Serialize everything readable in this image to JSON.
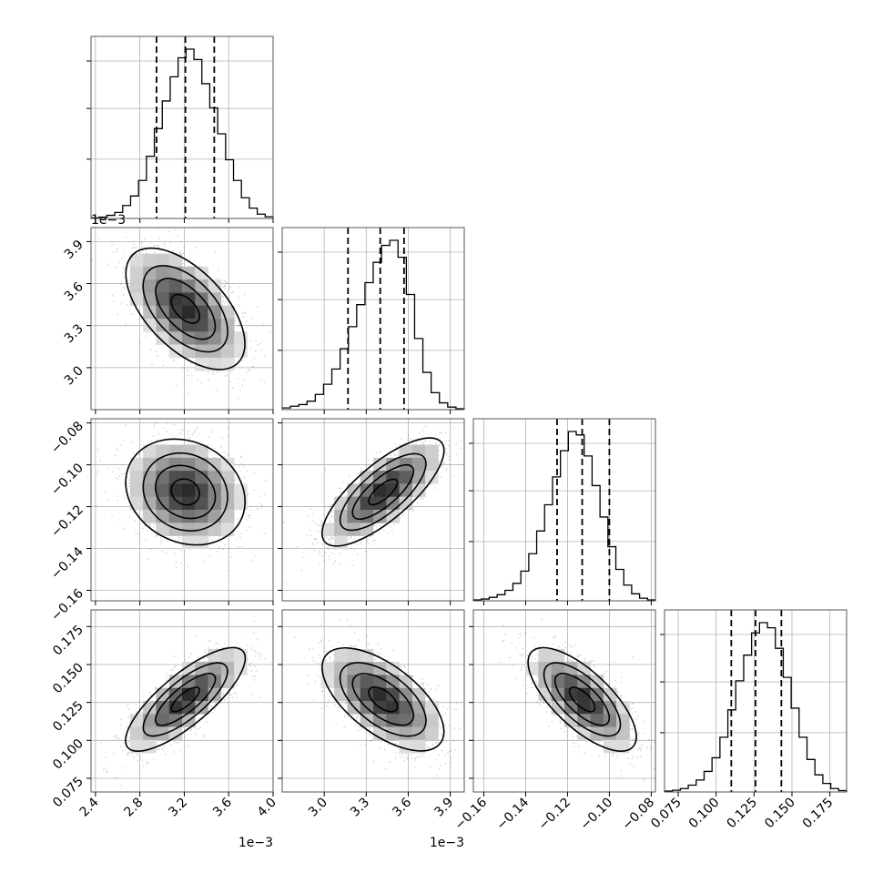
{
  "chart_data": {
    "type": "corner",
    "parameters": [
      {
        "id": "p0",
        "range": [
          0.00236,
          0.004
        ],
        "ticks": [
          0.0024,
          0.0028,
          0.0032,
          0.0036,
          0.004
        ],
        "tick_labels": [
          "2.4",
          "2.8",
          "3.2",
          "3.6",
          "4.0"
        ],
        "offset_label": "1e−3",
        "median": 0.00321,
        "q16": 0.00295,
        "q84": 0.00347,
        "hist_bins": [
          0.004,
          0.008,
          0.018,
          0.035,
          0.075,
          0.13,
          0.22,
          0.36,
          0.52,
          0.68,
          0.82,
          0.93,
          0.98,
          0.92,
          0.78,
          0.64,
          0.49,
          0.34,
          0.22,
          0.12,
          0.06,
          0.025,
          0.01
        ]
      },
      {
        "id": "p1",
        "range": [
          0.0027,
          0.004
        ],
        "ticks": [
          0.003,
          0.0033,
          0.0036,
          0.0039
        ],
        "tick_labels": [
          "3.0",
          "3.3",
          "3.6",
          "3.9"
        ],
        "offset_label": "1e−3",
        "median": 0.0034,
        "q16": 0.00317,
        "q84": 0.00357,
        "hist_bins": [
          0.01,
          0.02,
          0.03,
          0.05,
          0.09,
          0.15,
          0.24,
          0.36,
          0.49,
          0.62,
          0.75,
          0.87,
          0.97,
          1.0,
          0.9,
          0.68,
          0.42,
          0.22,
          0.1,
          0.04,
          0.015,
          0.005
        ]
      },
      {
        "id": "p2",
        "range": [
          -0.165,
          -0.078
        ],
        "ticks": [
          -0.16,
          -0.14,
          -0.12,
          -0.1,
          -0.08
        ],
        "tick_labels": [
          "−0.16",
          "−0.14",
          "−0.12",
          "−0.10",
          "−0.08"
        ],
        "offset_label": "",
        "median": -0.113,
        "q16": -0.125,
        "q84": -0.1,
        "hist_bins": [
          0.005,
          0.01,
          0.02,
          0.035,
          0.06,
          0.1,
          0.17,
          0.27,
          0.4,
          0.55,
          0.71,
          0.86,
          0.97,
          0.95,
          0.83,
          0.66,
          0.48,
          0.31,
          0.18,
          0.09,
          0.04,
          0.015,
          0.005
        ]
      },
      {
        "id": "p3",
        "range": [
          0.066,
          0.186
        ],
        "ticks": [
          0.075,
          0.1,
          0.125,
          0.15,
          0.175
        ],
        "tick_labels": [
          "0.075",
          "0.100",
          "0.125",
          "0.150",
          "0.175"
        ],
        "offset_label": "",
        "median": 0.126,
        "q16": 0.11,
        "q84": 0.143,
        "hist_bins": [
          0.005,
          0.01,
          0.02,
          0.04,
          0.07,
          0.12,
          0.2,
          0.32,
          0.48,
          0.65,
          0.8,
          0.93,
          0.99,
          0.96,
          0.84,
          0.67,
          0.49,
          0.32,
          0.19,
          0.1,
          0.05,
          0.02,
          0.008
        ]
      }
    ],
    "pairs": [
      {
        "row": 1,
        "col": 0,
        "mean": [
          0.00321,
          0.00342
        ],
        "sd": [
          0.00026,
          0.00021
        ],
        "rho": -0.55
      },
      {
        "row": 2,
        "col": 0,
        "mean": [
          0.00321,
          -0.113
        ],
        "sd": [
          0.00026,
          0.0125
        ],
        "rho": -0.15
      },
      {
        "row": 2,
        "col": 1,
        "mean": [
          0.00342,
          -0.113
        ],
        "sd": [
          0.00021,
          0.0125
        ],
        "rho": 0.75
      },
      {
        "row": 3,
        "col": 0,
        "mean": [
          0.00321,
          0.127
        ],
        "sd": [
          0.00026,
          0.0165
        ],
        "rho": 0.78
      },
      {
        "row": 3,
        "col": 1,
        "mean": [
          0.00342,
          0.127
        ],
        "sd": [
          0.00021,
          0.0165
        ],
        "rho": -0.6
      },
      {
        "row": 3,
        "col": 2,
        "mean": [
          -0.113,
          0.127
        ],
        "sd": [
          0.0125,
          0.0165
        ],
        "rho": -0.7
      }
    ],
    "contour_levels_sigma": [
      0.5,
      1.0,
      1.5,
      2.0
    ],
    "grid": true,
    "title": "",
    "legend": "none"
  }
}
